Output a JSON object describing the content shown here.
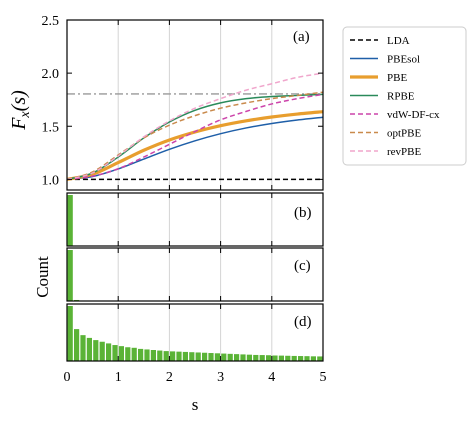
{
  "chart_data": [
    {
      "id": "a",
      "type": "line",
      "panel_label": "(a)",
      "ylabel": "F_x(s)",
      "ylabel_main": "F",
      "ylabel_sub": "x",
      "ylabel_arg": "(s)",
      "xlim": [
        0,
        5
      ],
      "ylim": [
        0.9,
        2.5
      ],
      "yticks": [
        "1.0",
        "1.5",
        "2.0",
        "2.5"
      ],
      "ytick_values": [
        1.0,
        1.5,
        2.0,
        2.5
      ],
      "grid_x": [
        1,
        2,
        3,
        4
      ],
      "hline": {
        "y": 1.804,
        "color": "#999999",
        "style": "dashdot"
      },
      "legend_position": "outside-right",
      "series": [
        {
          "name": "LDA",
          "color": "#000000",
          "dash": "5,3",
          "width": 1.6,
          "x": [
            0,
            1,
            2,
            3,
            4,
            5
          ],
          "y": [
            1.0,
            1.0,
            1.0,
            1.0,
            1.0,
            1.0
          ]
        },
        {
          "name": "PBEsol",
          "color": "#1f5fa8",
          "dash": "",
          "width": 1.5,
          "x": [
            0,
            0.5,
            1,
            1.5,
            2,
            2.5,
            3,
            3.5,
            4,
            4.5,
            5
          ],
          "y": [
            1.0,
            1.027,
            1.098,
            1.191,
            1.283,
            1.363,
            1.43,
            1.484,
            1.526,
            1.559,
            1.585
          ]
        },
        {
          "name": "PBE",
          "color": "#e89e2e",
          "dash": "",
          "width": 3.2,
          "x": [
            0,
            0.5,
            1,
            1.5,
            2,
            2.5,
            3,
            3.5,
            4,
            4.5,
            5
          ],
          "y": [
            1.0,
            1.048,
            1.158,
            1.274,
            1.371,
            1.446,
            1.505,
            1.551,
            1.587,
            1.615,
            1.637
          ]
        },
        {
          "name": "RPBE",
          "color": "#2a8a5a",
          "dash": "",
          "width": 1.5,
          "x": [
            0,
            0.5,
            1,
            1.5,
            2,
            2.5,
            3,
            3.5,
            4,
            4.5,
            5
          ],
          "y": [
            1.0,
            1.06,
            1.21,
            1.39,
            1.54,
            1.65,
            1.72,
            1.76,
            1.78,
            1.79,
            1.8
          ]
        },
        {
          "name": "vdW-DF-cx",
          "color": "#cc44aa",
          "dash": "5,3",
          "width": 1.5,
          "x": [
            0,
            0.5,
            1,
            1.5,
            2,
            2.5,
            3,
            3.5,
            4,
            4.5,
            5
          ],
          "y": [
            1.0,
            1.03,
            1.1,
            1.21,
            1.33,
            1.45,
            1.56,
            1.64,
            1.71,
            1.76,
            1.8
          ]
        },
        {
          "name": "optPBE",
          "color": "#c98a4c",
          "dash": "5,3",
          "width": 1.5,
          "x": [
            0,
            0.5,
            1,
            1.5,
            2,
            2.5,
            3,
            3.5,
            4,
            4.5,
            5
          ],
          "y": [
            1.0,
            1.07,
            1.23,
            1.39,
            1.51,
            1.6,
            1.67,
            1.72,
            1.76,
            1.79,
            1.82
          ]
        },
        {
          "name": "revPBE",
          "color": "#f0a6cc",
          "dash": "5,3",
          "width": 1.5,
          "x": [
            0,
            0.5,
            1,
            1.5,
            2,
            2.5,
            3,
            3.5,
            4,
            4.5,
            5
          ],
          "y": [
            1.0,
            1.06,
            1.22,
            1.4,
            1.55,
            1.67,
            1.76,
            1.84,
            1.9,
            1.96,
            2.0
          ]
        }
      ]
    },
    {
      "id": "b",
      "type": "bar",
      "panel_label": "(b)",
      "bar_color": "#5ab336",
      "bin_width": 0.125,
      "x": [
        0.0625
      ],
      "values": [
        1.0
      ]
    },
    {
      "id": "c",
      "type": "bar",
      "panel_label": "(c)",
      "bar_color": "#5ab336",
      "bin_width": 0.125,
      "x": [
        0.0625,
        0.1875
      ],
      "values": [
        1.0,
        0.02
      ]
    },
    {
      "id": "d",
      "type": "bar",
      "panel_label": "(d)",
      "bar_color": "#5ab336",
      "bin_width": 0.125,
      "x": [
        0.0625,
        0.1875,
        0.3125,
        0.4375,
        0.5625,
        0.6875,
        0.8125,
        0.9375,
        1.0625,
        1.1875,
        1.3125,
        1.4375,
        1.5625,
        1.6875,
        1.8125,
        1.9375,
        2.0625,
        2.1875,
        2.3125,
        2.4375,
        2.5625,
        2.6875,
        2.8125,
        2.9375,
        3.0625,
        3.1875,
        3.3125,
        3.4375,
        3.5625,
        3.6875,
        3.8125,
        3.9375,
        4.0625,
        4.1875,
        4.3125,
        4.4375,
        4.5625,
        4.6875,
        4.8125,
        4.9375
      ],
      "values": [
        1.0,
        0.58,
        0.47,
        0.42,
        0.38,
        0.35,
        0.32,
        0.29,
        0.27,
        0.25,
        0.24,
        0.22,
        0.21,
        0.2,
        0.19,
        0.18,
        0.175,
        0.17,
        0.165,
        0.16,
        0.155,
        0.15,
        0.145,
        0.14,
        0.135,
        0.13,
        0.125,
        0.12,
        0.115,
        0.11,
        0.108,
        0.105,
        0.1,
        0.098,
        0.095,
        0.092,
        0.09,
        0.088,
        0.085,
        0.083
      ]
    }
  ],
  "shared": {
    "xlabel": "s",
    "xticks": [
      "0",
      "1",
      "2",
      "3",
      "4",
      "5"
    ],
    "xtick_values": [
      0,
      1,
      2,
      3,
      4,
      5
    ],
    "hist_ylabel": "Count"
  }
}
